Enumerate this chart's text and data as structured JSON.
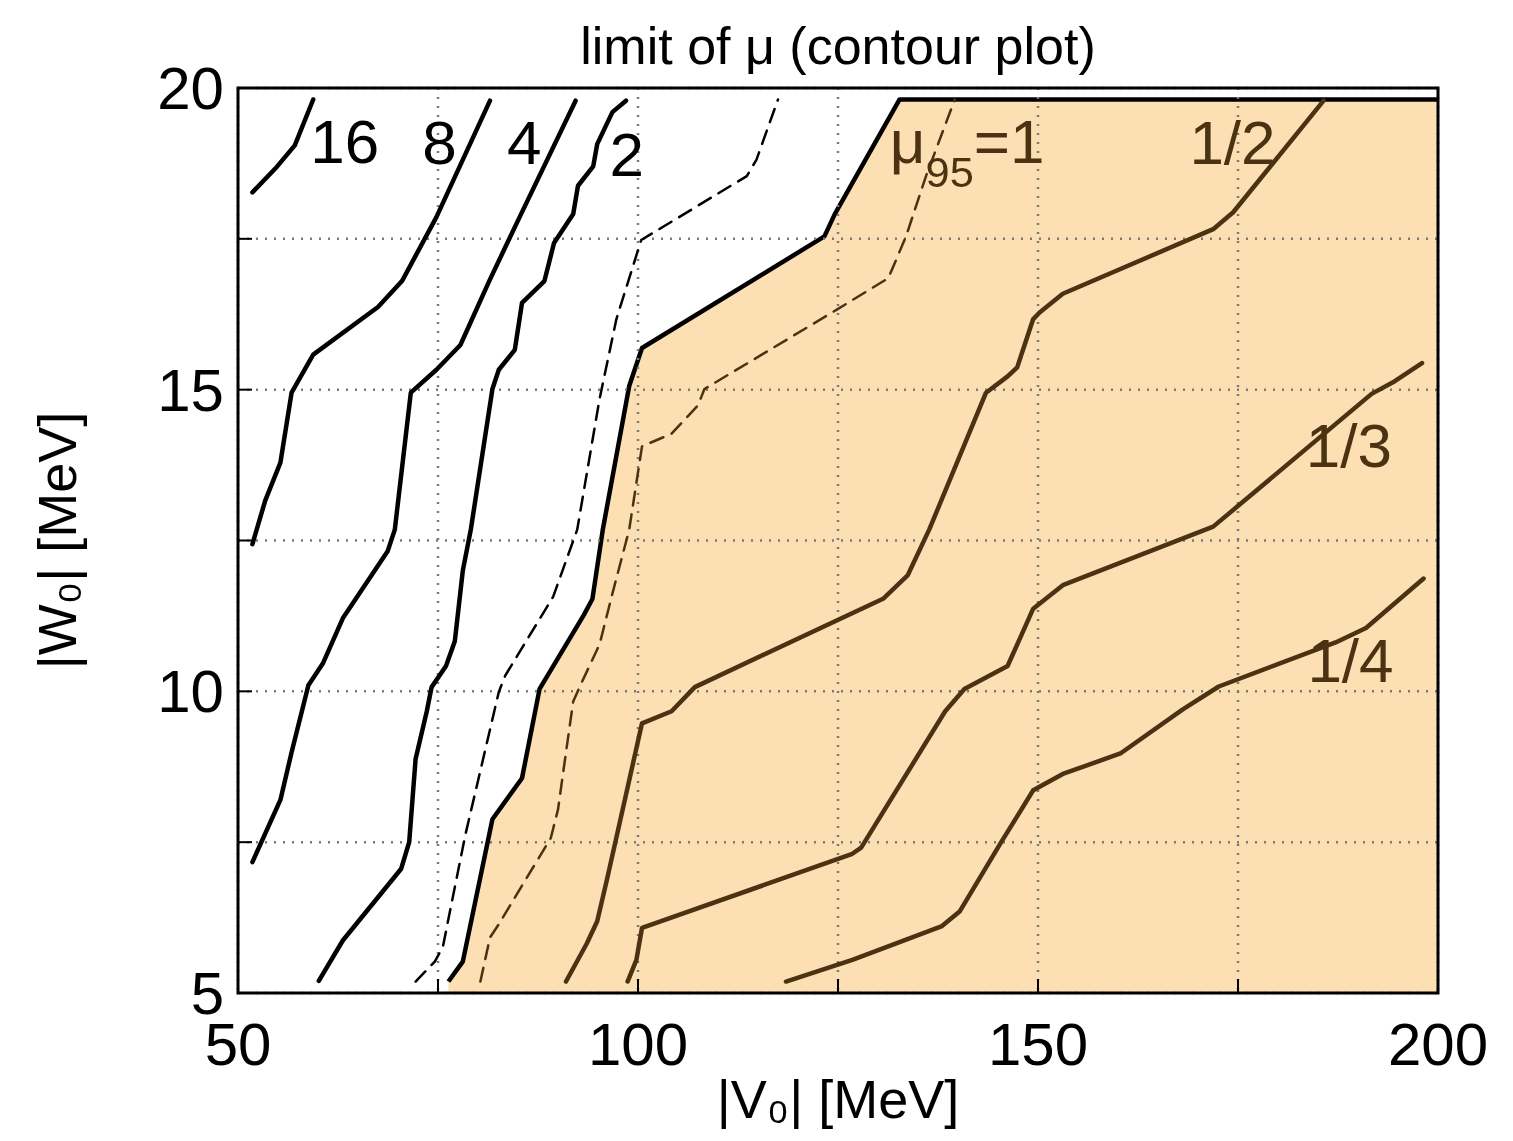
{
  "chart_data": {
    "type": "line",
    "title": "limit of μ (contour plot)",
    "xlabel": "|V₀| [MeV]",
    "ylabel": "|W₀| [MeV]",
    "xlim": [
      50,
      200
    ],
    "ylim": [
      5,
      20
    ],
    "xticks": [
      50,
      {
        "value": 75,
        "label": null
      },
      100,
      {
        "value": 125,
        "label": null
      },
      150,
      {
        "value": 175,
        "label": null
      },
      200
    ],
    "yticks": [
      5,
      {
        "value": 7.5,
        "label": null
      },
      10,
      {
        "value": 12.5,
        "label": null
      },
      15,
      {
        "value": 17.5,
        "label": null
      },
      20
    ],
    "grid": true,
    "series": [
      {
        "type": "area",
        "name": "μ$_{95}$=1",
        "color": "#fddfb4",
        "x": [
          76.3,
          78.1,
          81.8,
          85.5,
          87.7,
          93.2,
          94.3,
          95.6,
          98.9,
          100.5,
          123.3,
          124.6,
          132.7,
          200
        ],
        "values": [
          5.19,
          5.52,
          7.88,
          8.56,
          10.04,
          11.26,
          11.53,
          12.68,
          15.06,
          15.69,
          17.54,
          17.91,
          19.81,
          19.81
        ]
      },
      {
        "name": "16",
        "color": "#000000",
        "x": [
          51.8,
          54.9,
          57.1,
          59.4
        ],
        "values": [
          18.27,
          18.7,
          19.05,
          19.81
        ]
      },
      {
        "name": "8",
        "color": "#000000",
        "x": [
          51.8,
          53.4,
          55.3,
          56.7,
          59.4,
          67.5,
          70.5,
          74.8,
          81.5
        ],
        "values": [
          12.44,
          13.16,
          13.79,
          14.95,
          15.58,
          16.37,
          16.8,
          17.86,
          19.79
        ]
      },
      {
        "name": "4",
        "color": "#000000",
        "x": [
          51.8,
          55.3,
          56.7,
          58.8,
          60.6,
          63.1,
          68.7,
          69.6,
          71.6,
          74.8,
          77.8,
          81.4,
          85.2,
          92.2
        ],
        "values": [
          7.17,
          8.2,
          8.99,
          10.1,
          10.46,
          11.21,
          12.32,
          12.68,
          14.95,
          15.33,
          15.74,
          16.8,
          17.86,
          19.79
        ]
      },
      {
        "name": "2",
        "color": "#000000",
        "x": [
          60.1,
          63.1,
          70.4,
          71.4,
          72.2,
          73.6,
          74.2,
          76.0,
          77.1,
          78.1,
          79.1,
          81.8,
          82.6,
          84.6,
          85.5,
          88.3,
          89.5,
          91.9,
          92.5,
          94.4,
          94.9,
          96.8,
          98.5
        ],
        "values": [
          5.2,
          5.87,
          7.06,
          7.5,
          8.88,
          9.67,
          10.07,
          10.42,
          10.83,
          12.0,
          12.68,
          15.01,
          15.33,
          15.66,
          16.44,
          16.8,
          17.43,
          17.91,
          18.38,
          18.7,
          19.07,
          19.6,
          19.79
        ]
      },
      {
        "color": "#000000",
        "line_style": "dashed",
        "x": [
          72.2,
          74.6,
          75.6,
          78.4,
          82.6,
          83.4,
          89.4,
          92.4,
          95.2,
          97.3,
          100.4,
          113.6,
          114.8,
          117.5
        ],
        "values": [
          5.19,
          5.52,
          5.76,
          7.61,
          9.99,
          10.26,
          11.57,
          12.68,
          14.85,
          16.17,
          17.48,
          18.54,
          18.81,
          19.81
        ]
      },
      {
        "color": "#4a3212",
        "line_style": "dashed",
        "x": [
          80.3,
          81.5,
          82.6,
          89.1,
          90.0,
          91.0,
          91.9,
          92.8,
          95.2,
          96.8,
          98.9,
          100.5,
          104.2,
          107.5,
          108.3,
          124.9,
          131.3,
          133.5,
          136.0,
          139.6
        ],
        "values": [
          5.19,
          5.92,
          6.14,
          7.57,
          8.04,
          8.99,
          9.83,
          10.1,
          10.78,
          11.62,
          12.68,
          14.06,
          14.27,
          14.74,
          15.01,
          16.33,
          16.85,
          17.54,
          18.54,
          19.81
        ]
      },
      {
        "name": "1/2",
        "color": "#4a3212",
        "x": [
          91.0,
          93.6,
          94.9,
          96.1,
          100.5,
          104.2,
          107.1,
          130.7,
          133.7,
          136.4,
          143.5,
          146.2,
          147.4,
          149.4,
          150.2,
          153.1,
          171.9,
          174.4,
          185.7
        ],
        "values": [
          5.19,
          5.82,
          6.19,
          6.87,
          9.47,
          9.67,
          10.07,
          11.54,
          11.92,
          12.68,
          14.95,
          15.22,
          15.37,
          16.17,
          16.28,
          16.59,
          17.66,
          17.94,
          19.79
        ]
      },
      {
        "name": "1/3",
        "color": "#4a3212",
        "x": [
          98.7,
          99.8,
          100.5,
          126.7,
          127.9,
          138.4,
          140.8,
          146.2,
          149.4,
          153.1,
          171.9,
          174.8,
          191.7,
          194.6,
          198.0
        ],
        "values": [
          5.19,
          5.55,
          6.08,
          7.3,
          7.41,
          9.67,
          10.04,
          10.42,
          11.37,
          11.76,
          12.73,
          13.05,
          14.93,
          15.14,
          15.44
        ]
      },
      {
        "name": "1/4",
        "color": "#4a3212",
        "x": [
          118.5,
          126.8,
          138.0,
          140.2,
          145.4,
          149.4,
          153.1,
          160.3,
          168.1,
          172.6,
          187.2,
          191.0,
          198.2
        ],
        "values": [
          5.19,
          5.55,
          6.11,
          6.35,
          7.5,
          8.36,
          8.63,
          8.97,
          9.7,
          10.08,
          10.81,
          11.05,
          11.87
        ]
      }
    ]
  }
}
